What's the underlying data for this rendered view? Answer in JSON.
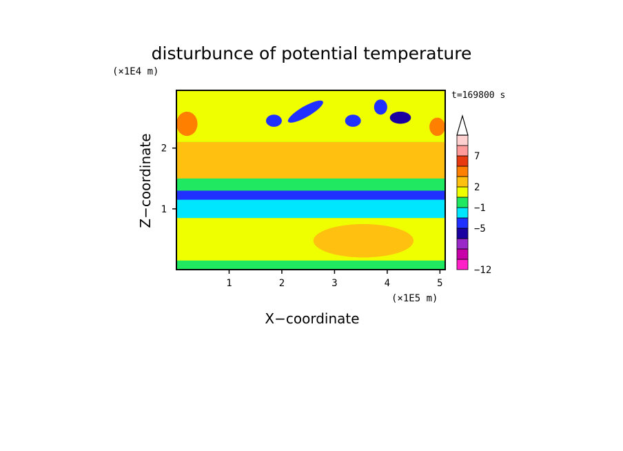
{
  "chart_data": {
    "type": "heatmap",
    "title": "disturbunce of potential temperature",
    "xlabel": "X−coordinate",
    "ylabel": "Z−coordinate",
    "x_scale_label": "(×1E5 m)",
    "y_scale_label": "(×1E4 m)",
    "time_label": "t=169800 s",
    "xlim": [
      0,
      5.1
    ],
    "ylim": [
      0,
      2.95
    ],
    "x_ticks": [
      "1",
      "2",
      "3",
      "4",
      "5"
    ],
    "y_ticks": [
      "1",
      "2"
    ],
    "x_tick_values": [
      1,
      2,
      3,
      4,
      5
    ],
    "y_tick_values": [
      1,
      2
    ],
    "colorbar": {
      "levels": [
        {
          "color": "#ff20c8"
        },
        {
          "color": "#c800a8"
        },
        {
          "color": "#9a28c8"
        },
        {
          "color": "#1a00a0"
        },
        {
          "color": "#2030ff"
        },
        {
          "color": "#00e6ff"
        },
        {
          "color": "#20e860"
        },
        {
          "color": "#f0ff00"
        },
        {
          "color": "#ffc010"
        },
        {
          "color": "#ff8000"
        },
        {
          "color": "#e83a10"
        },
        {
          "color": "#ff9a9a"
        },
        {
          "color": "#ffd0d0"
        }
      ],
      "labels": [
        {
          "text": "−12",
          "level_index": 0
        },
        {
          "text": "−5",
          "level_index": 4
        },
        {
          "text": "−1",
          "level_index": 6
        },
        {
          "text": "2",
          "level_index": 8
        },
        {
          "text": "7",
          "level_index": 11
        }
      ]
    },
    "bands": [
      {
        "z": [
          0.0,
          0.15
        ],
        "category": "lowest cool rim",
        "color": "#20e860"
      },
      {
        "z": [
          0.15,
          0.85
        ],
        "category": "near-zero positive",
        "color": "#f0ff00"
      },
      {
        "z": [
          0.85,
          1.2
        ],
        "category": "cool layer",
        "color": "#00e6ff"
      },
      {
        "z": [
          1.15,
          1.3
        ],
        "category": "strong cool band",
        "color": "#2030ff"
      },
      {
        "z": [
          1.3,
          1.5
        ],
        "category": "weak cool",
        "color": "#20e860"
      },
      {
        "z": [
          1.5,
          2.1
        ],
        "category": "warm layer",
        "color": "#ffc010"
      },
      {
        "z": [
          2.1,
          2.95
        ],
        "category": "mixed upper layer",
        "color": "#f0ff00"
      }
    ],
    "features": [
      {
        "x": [
          2.2,
          2.7
        ],
        "z": [
          2.35,
          2.85
        ],
        "color": "#2030ff",
        "kind": "tilted cool lobe"
      },
      {
        "x": [
          1.7,
          2.0
        ],
        "z": [
          2.35,
          2.55
        ],
        "color": "#2030ff",
        "kind": "cool lobe"
      },
      {
        "x": [
          3.2,
          3.5
        ],
        "z": [
          2.35,
          2.55
        ],
        "color": "#2030ff",
        "kind": "cool lobe"
      },
      {
        "x": [
          3.75,
          4.0
        ],
        "z": [
          2.55,
          2.8
        ],
        "color": "#2030ff",
        "kind": "cool lobe"
      },
      {
        "x": [
          4.05,
          4.45
        ],
        "z": [
          2.4,
          2.6
        ],
        "color": "#1a00a0",
        "kind": "strong cool core"
      },
      {
        "x": [
          0.0,
          0.4
        ],
        "z": [
          2.2,
          2.6
        ],
        "color": "#ff8000",
        "kind": "warm patch"
      },
      {
        "x": [
          4.8,
          5.1
        ],
        "z": [
          2.2,
          2.5
        ],
        "color": "#ff8000",
        "kind": "warm patch"
      },
      {
        "x": [
          2.6,
          4.5
        ],
        "z": [
          0.2,
          0.75
        ],
        "color": "#ffc010",
        "kind": "warm low-level region"
      }
    ]
  }
}
